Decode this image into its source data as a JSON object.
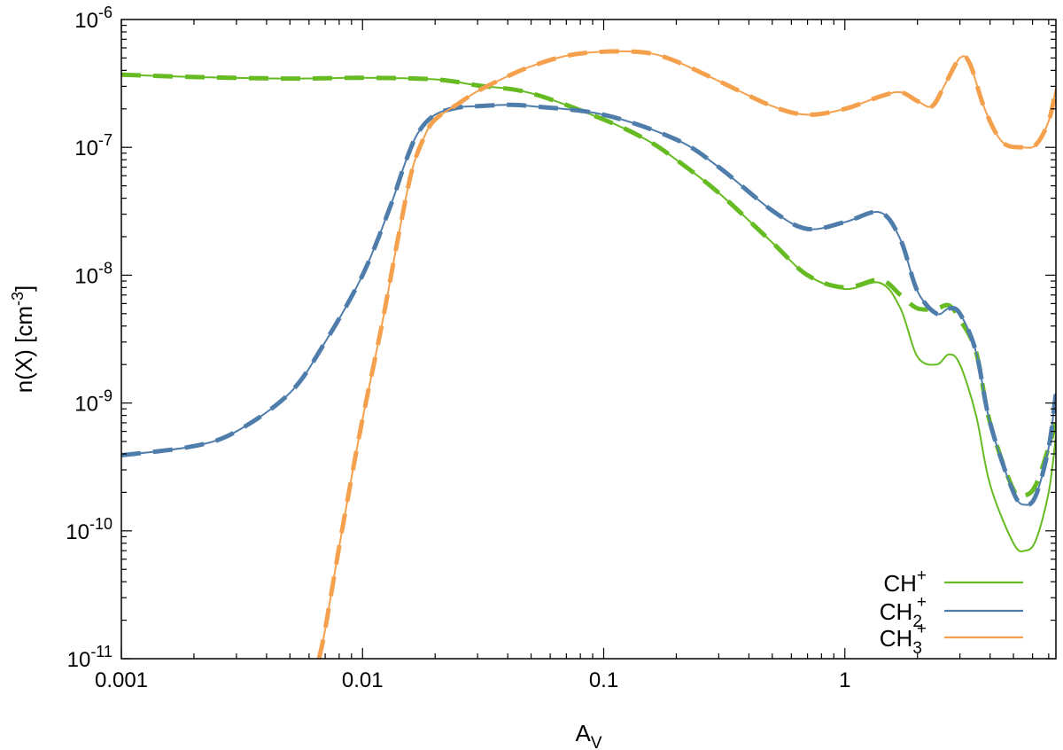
{
  "chart_data": {
    "type": "line",
    "title": "",
    "xlabel": "A",
    "xlabel_sub": "V",
    "ylabel": "n(X)  [cm",
    "ylabel_sup": "-3",
    "ylabel_end": "]",
    "xscale": "log",
    "yscale": "log",
    "xlim": [
      0.001,
      7.5
    ],
    "ylim": [
      1e-11,
      1e-06
    ],
    "grid": false,
    "legend_position": "bottom-right",
    "x_ticks": [
      {
        "value": 0.001,
        "label": "0.001"
      },
      {
        "value": 0.01,
        "label": "0.01"
      },
      {
        "value": 0.1,
        "label": "0.1"
      },
      {
        "value": 1,
        "label": "1"
      }
    ],
    "y_ticks": [
      {
        "value": 1e-11,
        "base": "10",
        "exp": "-11"
      },
      {
        "value": 1e-10,
        "base": "10",
        "exp": "-10"
      },
      {
        "value": 1e-09,
        "base": "10",
        "exp": "-9"
      },
      {
        "value": 1e-08,
        "base": "10",
        "exp": "-8"
      },
      {
        "value": 1e-07,
        "base": "10",
        "exp": "-7"
      },
      {
        "value": 1e-06,
        "base": "10",
        "exp": "-6"
      }
    ],
    "series": [
      {
        "name": "CH",
        "name_sub": "",
        "name_sup": "+",
        "color": "#66bb22",
        "style": "solid",
        "points": [
          [
            0.001,
            3.7e-07
          ],
          [
            0.002,
            3.55e-07
          ],
          [
            0.005,
            3.45e-07
          ],
          [
            0.01,
            3.5e-07
          ],
          [
            0.02,
            3.4e-07
          ],
          [
            0.03,
            3.05e-07
          ],
          [
            0.05,
            2.65e-07
          ],
          [
            0.1,
            1.65e-07
          ],
          [
            0.15,
            1.15e-07
          ],
          [
            0.2,
            8e-08
          ],
          [
            0.3,
            4.4e-08
          ],
          [
            0.5,
            1.8e-08
          ],
          [
            0.7,
            1e-08
          ],
          [
            1.0,
            7.8e-09
          ],
          [
            1.4,
            8.7e-09
          ],
          [
            1.7,
            5.5e-09
          ],
          [
            2.0,
            2.3e-09
          ],
          [
            2.4,
            2e-09
          ],
          [
            2.7,
            2.4e-09
          ],
          [
            3.0,
            2e-09
          ],
          [
            3.5,
            8e-10
          ],
          [
            4.0,
            2.3e-10
          ],
          [
            5.0,
            8e-11
          ],
          [
            5.6,
            7e-11
          ],
          [
            6.2,
            8.5e-11
          ],
          [
            7.0,
            2e-10
          ],
          [
            7.5,
            5.5e-10
          ]
        ]
      },
      {
        "name": "CH",
        "name_sub": "",
        "name_sup": "+",
        "color": "#66bb22",
        "style": "dashed",
        "points": [
          [
            0.001,
            3.7e-07
          ],
          [
            0.002,
            3.55e-07
          ],
          [
            0.005,
            3.45e-07
          ],
          [
            0.01,
            3.5e-07
          ],
          [
            0.02,
            3.4e-07
          ],
          [
            0.03,
            3.05e-07
          ],
          [
            0.05,
            2.65e-07
          ],
          [
            0.1,
            1.65e-07
          ],
          [
            0.15,
            1.15e-07
          ],
          [
            0.2,
            8e-08
          ],
          [
            0.3,
            4.4e-08
          ],
          [
            0.5,
            1.8e-08
          ],
          [
            0.7,
            1e-08
          ],
          [
            1.0,
            8e-09
          ],
          [
            1.4,
            9.2e-09
          ],
          [
            1.7,
            7e-09
          ],
          [
            2.0,
            5.5e-09
          ],
          [
            2.4,
            5.5e-09
          ],
          [
            2.7,
            5.8e-09
          ],
          [
            3.0,
            4.5e-09
          ],
          [
            3.5,
            2.5e-09
          ],
          [
            4.0,
            7e-10
          ],
          [
            5.0,
            2.1e-10
          ],
          [
            5.6,
            1.9e-10
          ],
          [
            6.2,
            2.3e-10
          ],
          [
            7.0,
            4.5e-10
          ],
          [
            7.5,
            7e-10
          ]
        ]
      },
      {
        "name": "CH",
        "name_sub": "2",
        "name_sup": "+",
        "color": "#4f7dab",
        "style": "solid",
        "points": [
          [
            0.001,
            3.9e-10
          ],
          [
            0.002,
            4.6e-10
          ],
          [
            0.003,
            6e-10
          ],
          [
            0.005,
            1.2e-09
          ],
          [
            0.007,
            3e-09
          ],
          [
            0.01,
            1e-08
          ],
          [
            0.013,
            3.4e-08
          ],
          [
            0.015,
            7.5e-08
          ],
          [
            0.017,
            1.3e-07
          ],
          [
            0.02,
            1.8e-07
          ],
          [
            0.025,
            2.05e-07
          ],
          [
            0.03,
            2.1e-07
          ],
          [
            0.04,
            2.15e-07
          ],
          [
            0.05,
            2.1e-07
          ],
          [
            0.1,
            1.8e-07
          ],
          [
            0.2,
            1.15e-07
          ],
          [
            0.3,
            7e-08
          ],
          [
            0.5,
            3.2e-08
          ],
          [
            0.7,
            2.3e-08
          ],
          [
            1.0,
            2.6e-08
          ],
          [
            1.4,
            3.1e-08
          ],
          [
            1.7,
            1.9e-08
          ],
          [
            2.0,
            7.5e-09
          ],
          [
            2.4,
            5e-09
          ],
          [
            2.7,
            5.5e-09
          ],
          [
            3.0,
            5e-09
          ],
          [
            3.5,
            2.5e-09
          ],
          [
            4.0,
            7e-10
          ],
          [
            5.0,
            2e-10
          ],
          [
            5.6,
            1.6e-10
          ],
          [
            6.2,
            1.9e-10
          ],
          [
            7.0,
            4.5e-10
          ],
          [
            7.5,
            1.2e-09
          ]
        ]
      },
      {
        "name": "CH",
        "name_sub": "3",
        "name_sup": "+",
        "color": "#f5a04d",
        "style": "solid",
        "points": [
          [
            0.0066,
            1e-11
          ],
          [
            0.007,
            1.7e-11
          ],
          [
            0.008,
            7.5e-11
          ],
          [
            0.009,
            2.6e-10
          ],
          [
            0.01,
            7.5e-10
          ],
          [
            0.012,
            4e-09
          ],
          [
            0.014,
            1.9e-08
          ],
          [
            0.016,
            6.5e-08
          ],
          [
            0.018,
            1.2e-07
          ],
          [
            0.02,
            1.65e-07
          ],
          [
            0.025,
            2.2e-07
          ],
          [
            0.03,
            2.75e-07
          ],
          [
            0.04,
            3.6e-07
          ],
          [
            0.05,
            4.3e-07
          ],
          [
            0.07,
            5.2e-07
          ],
          [
            0.1,
            5.6e-07
          ],
          [
            0.15,
            5.5e-07
          ],
          [
            0.2,
            4.7e-07
          ],
          [
            0.3,
            3.3e-07
          ],
          [
            0.5,
            2.1e-07
          ],
          [
            0.7,
            1.8e-07
          ],
          [
            1.0,
            2e-07
          ],
          [
            1.4,
            2.5e-07
          ],
          [
            1.7,
            2.7e-07
          ],
          [
            2.0,
            2.3e-07
          ],
          [
            2.3,
            2.1e-07
          ],
          [
            2.6,
            3.1e-07
          ],
          [
            3.0,
            5e-07
          ],
          [
            3.3,
            4.5e-07
          ],
          [
            3.8,
            2e-07
          ],
          [
            4.5,
            1.1e-07
          ],
          [
            5.5,
            1e-07
          ],
          [
            6.2,
            1.05e-07
          ],
          [
            7.0,
            1.6e-07
          ],
          [
            7.5,
            2.9e-07
          ]
        ]
      }
    ],
    "legend": [
      {
        "name": "CH",
        "sub": "",
        "sup": "+",
        "color": "#66bb22"
      },
      {
        "name": "CH",
        "sub": "2",
        "sup": "+",
        "color": "#4f7dab"
      },
      {
        "name": "CH",
        "sub": "3",
        "sup": "+",
        "color": "#f5a04d"
      }
    ]
  }
}
